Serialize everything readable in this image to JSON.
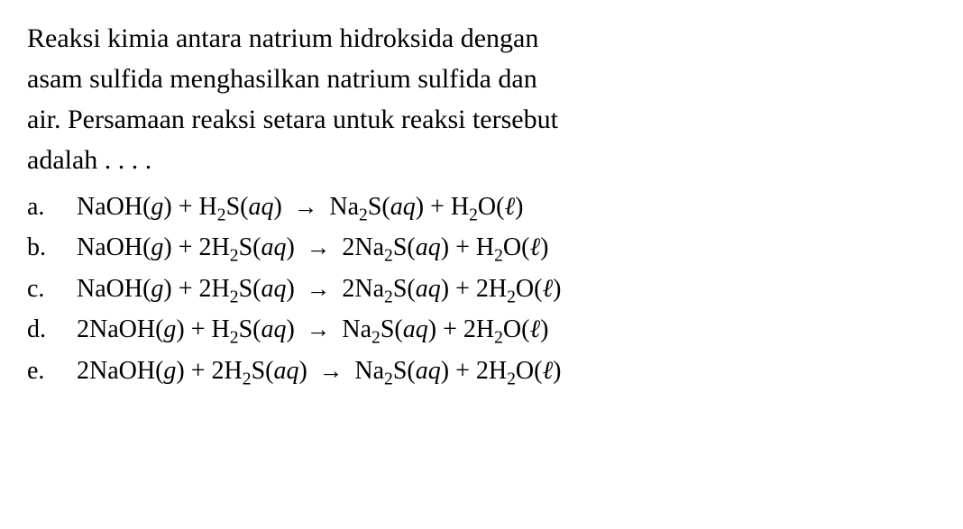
{
  "question": {
    "text_lines": [
      "Reaksi kimia antara natrium hidroksida dengan",
      "asam sulfida menghasilkan natrium sulfida dan",
      "air. Persamaan reaksi setara untuk reaksi tersebut",
      "adalah . . . ."
    ]
  },
  "options": [
    {
      "letter": "a.",
      "reactants": [
        {
          "coefficient": "",
          "formula": "NaOH",
          "state": "g"
        },
        {
          "coefficient": "",
          "formula": "H2S",
          "state": "aq"
        }
      ],
      "products": [
        {
          "coefficient": "",
          "formula": "Na2S",
          "state": "aq"
        },
        {
          "coefficient": "",
          "formula": "H2O",
          "state": "ℓ"
        }
      ]
    },
    {
      "letter": "b.",
      "reactants": [
        {
          "coefficient": "",
          "formula": "NaOH",
          "state": "g"
        },
        {
          "coefficient": "2",
          "formula": "H2S",
          "state": "aq"
        }
      ],
      "products": [
        {
          "coefficient": "2",
          "formula": "Na2S",
          "state": "aq"
        },
        {
          "coefficient": "",
          "formula": "H2O",
          "state": "ℓ"
        }
      ]
    },
    {
      "letter": "c.",
      "reactants": [
        {
          "coefficient": "",
          "formula": "NaOH",
          "state": "g"
        },
        {
          "coefficient": "2",
          "formula": "H2S",
          "state": "aq"
        }
      ],
      "products": [
        {
          "coefficient": "2",
          "formula": "Na2S",
          "state": "aq"
        },
        {
          "coefficient": "2",
          "formula": "H2O",
          "state": "ℓ"
        }
      ]
    },
    {
      "letter": "d.",
      "reactants": [
        {
          "coefficient": "2",
          "formula": "NaOH",
          "state": "g"
        },
        {
          "coefficient": "",
          "formula": "H2S",
          "state": "aq"
        }
      ],
      "products": [
        {
          "coefficient": "",
          "formula": "Na2S",
          "state": "aq"
        },
        {
          "coefficient": "2",
          "formula": "H2O",
          "state": "ℓ"
        }
      ]
    },
    {
      "letter": "e.",
      "reactants": [
        {
          "coefficient": "2",
          "formula": "NaOH",
          "state": "g"
        },
        {
          "coefficient": "2",
          "formula": "H2S",
          "state": "aq"
        }
      ],
      "products": [
        {
          "coefficient": "",
          "formula": "Na2S",
          "state": "aq"
        },
        {
          "coefficient": "2",
          "formula": "H2O",
          "state": "ℓ"
        }
      ]
    }
  ],
  "styling": {
    "background_color": "#ffffff",
    "text_color": "#000000",
    "font_family": "Georgia, Times New Roman, serif",
    "question_fontsize": 30,
    "option_fontsize": 28,
    "arrow_symbol": "→",
    "plus_symbol": "+"
  }
}
